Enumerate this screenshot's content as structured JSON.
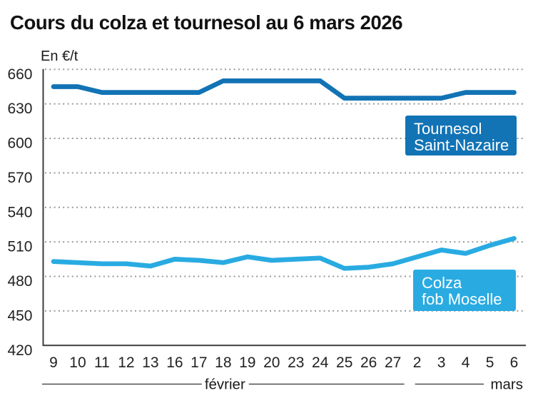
{
  "title": "Cours du colza et tournesol au 6 mars 2026",
  "unit_label": "En €/t",
  "legend": {
    "tournesol": {
      "line1": "Tournesol",
      "line2": "Saint-Nazaire",
      "color": "#1273b5"
    },
    "colza": {
      "line1": "Colza",
      "line2": "fob Moselle",
      "color": "#29abe2"
    }
  },
  "colors": {
    "tournesol_line": "#1273b5",
    "colza_line": "#29abe2",
    "gridline": "#999999",
    "axis": "#3d3d3d",
    "tick_label": "#222222",
    "title_text": "#111111"
  },
  "chart_data": {
    "type": "line",
    "title": "Cours du colza et tournesol au 6 mars 2026",
    "ylabel": "En €/t",
    "xlabel": "",
    "ylim": [
      420,
      660
    ],
    "yticks": [
      420,
      450,
      480,
      510,
      540,
      570,
      600,
      630,
      660
    ],
    "grid": "horizontal dotted",
    "legend_position": "labeled boxes overlaid at right of plot",
    "categories": [
      "9",
      "10",
      "11",
      "12",
      "13",
      "16",
      "17",
      "18",
      "19",
      "20",
      "23",
      "24",
      "25",
      "26",
      "27",
      "2",
      "3",
      "4",
      "5",
      "6"
    ],
    "month_groups": [
      {
        "label": "février",
        "from_index": 0,
        "to_index": 14
      },
      {
        "label": "mars",
        "from_index": 15,
        "to_index": 19
      }
    ],
    "series": [
      {
        "name": "Tournesol Saint-Nazaire",
        "color": "#1273b5",
        "values": [
          645,
          645,
          640,
          640,
          640,
          640,
          640,
          650,
          650,
          650,
          650,
          650,
          635,
          635,
          635,
          635,
          635,
          640,
          640,
          640
        ]
      },
      {
        "name": "Colza fob Moselle",
        "color": "#29abe2",
        "values": [
          493,
          492,
          491,
          491,
          489,
          495,
          494,
          492,
          497,
          494,
          495,
          496,
          487,
          488,
          491,
          497,
          503,
          500,
          507,
          513
        ]
      }
    ]
  }
}
